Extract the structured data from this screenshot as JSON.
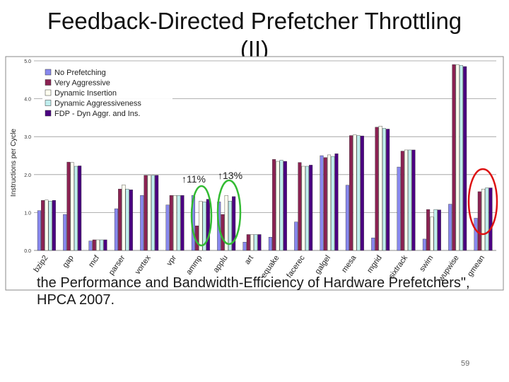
{
  "slide": {
    "title_line1": "Feedback-Directed Prefetcher Throttling",
    "title_line2": "(II)",
    "citation": "the Performance and Bandwidth-Efficiency of Hardware Prefetchers\", HPCA 2007.",
    "page_number": "59"
  },
  "annotations": {
    "ammp_gain": "11%",
    "applu_gain": "13%",
    "up_arrow_glyph": "↑"
  },
  "chart_data": {
    "type": "bar",
    "ylabel": "Instructions per Cycle",
    "xlabel": "",
    "ylim": [
      0,
      5
    ],
    "yticks": [
      "0.0",
      "1.0",
      "2.0",
      "3.0",
      "4.0",
      "5.0"
    ],
    "grid": true,
    "legend_position": "top-left",
    "categories": [
      "bzip2",
      "gap",
      "mcf",
      "parser",
      "vortex",
      "vpr",
      "ammp",
      "applu",
      "art",
      "equake",
      "facerec",
      "galgel",
      "mesa",
      "mgrid",
      "sixtrack",
      "swim",
      "wupwise",
      "gmean"
    ],
    "series": [
      {
        "name": "No Prefetching",
        "color": "#8888ee",
        "values": [
          1.05,
          0.95,
          0.25,
          1.1,
          1.45,
          1.2,
          1.45,
          1.28,
          0.22,
          0.35,
          0.75,
          2.5,
          1.72,
          0.33,
          2.2,
          0.3,
          1.22,
          0.85
        ]
      },
      {
        "name": "Very Aggressive",
        "color": "#8b2252",
        "values": [
          1.32,
          2.33,
          0.28,
          1.62,
          1.98,
          1.45,
          0.65,
          0.95,
          0.42,
          2.4,
          2.32,
          2.45,
          3.03,
          3.25,
          2.62,
          1.08,
          4.9,
          1.55
        ]
      },
      {
        "name": "Dynamic Insertion",
        "color": "#fffff0",
        "values": [
          1.33,
          2.32,
          0.28,
          1.73,
          1.98,
          1.45,
          1.3,
          1.45,
          0.42,
          2.35,
          2.22,
          2.52,
          3.05,
          3.28,
          2.65,
          0.88,
          4.9,
          1.62
        ]
      },
      {
        "name": "Dynamic Aggressiveness",
        "color": "#c0eeee",
        "values": [
          1.3,
          2.22,
          0.28,
          1.62,
          1.98,
          1.45,
          1.28,
          1.3,
          0.42,
          2.38,
          2.22,
          2.48,
          3.03,
          3.22,
          2.65,
          1.08,
          4.88,
          1.65
        ]
      },
      {
        "name": "FDP - Dyn Aggr. and Ins.",
        "color": "#4b0082",
        "values": [
          1.32,
          2.23,
          0.28,
          1.6,
          1.98,
          1.45,
          1.35,
          1.42,
          0.42,
          2.35,
          2.25,
          2.55,
          3.02,
          3.2,
          2.65,
          1.07,
          4.85,
          1.65
        ]
      }
    ]
  }
}
